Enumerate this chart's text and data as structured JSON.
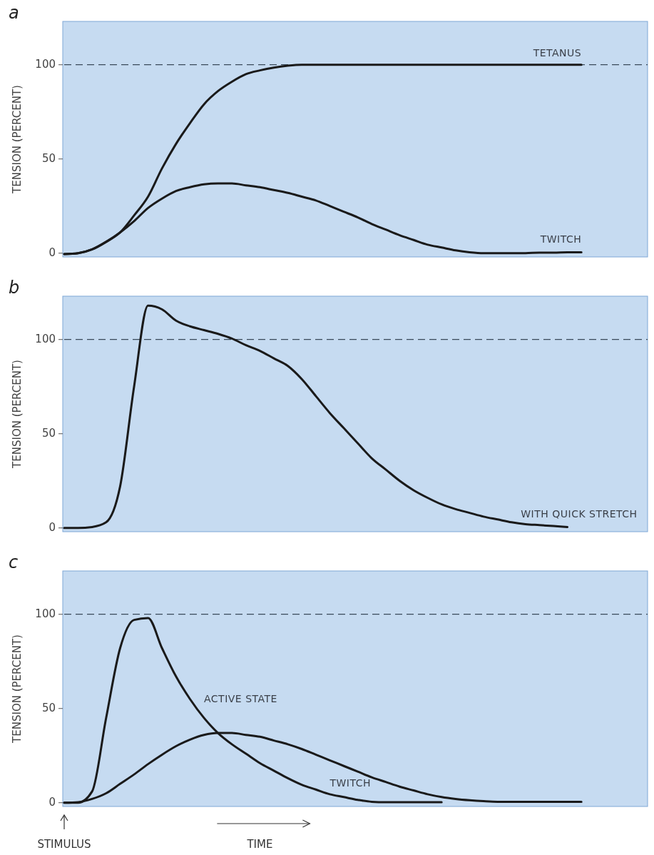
{
  "chart_data": [
    {
      "type": "line",
      "title": "a",
      "ylabel": "TENSION (PERCENT)",
      "categories": [
        null,
        null,
        null,
        null,
        null,
        null,
        null,
        null,
        null,
        null,
        null,
        null,
        null,
        null,
        null,
        null,
        null,
        null,
        null,
        null,
        null,
        null,
        null,
        null,
        null,
        null,
        null,
        null,
        null,
        null,
        null,
        null,
        null,
        null,
        null,
        null,
        null,
        null,
        null,
        null,
        null,
        null
      ],
      "ylim": [
        -2,
        123
      ],
      "yticks": [
        0,
        50,
        100
      ],
      "tick_labels": "y",
      "grid": false,
      "line_style": "solid",
      "ref_lines": [
        {
          "axis": "y",
          "value": 100,
          "line_style": "dashed",
          "color": "#3a4a5a"
        }
      ],
      "series": [
        {
          "name": "TETANUS",
          "color": "#1a1a1a",
          "values": [
            -0.5,
            0,
            2,
            6,
            11,
            20,
            30,
            45,
            58,
            69,
            79,
            86,
            91,
            95,
            97,
            98.5,
            99.5,
            100,
            100,
            100,
            100,
            100,
            100,
            100,
            100,
            100,
            100,
            100,
            100,
            100,
            100,
            100,
            100,
            100,
            100,
            100,
            100,
            100,
            null,
            null,
            null,
            null
          ]
        },
        {
          "name": "TWITCH",
          "color": "#1a1a1a",
          "values": [
            -0.5,
            0,
            2,
            6,
            11,
            17,
            24,
            29,
            33,
            35,
            36.5,
            37,
            37,
            36,
            35,
            33.5,
            32,
            30,
            28,
            25,
            22,
            19,
            15.5,
            12.5,
            9.5,
            7,
            4.5,
            3,
            1.5,
            0.5,
            0,
            0,
            0,
            0,
            0.3,
            0.3,
            0.5,
            0.5,
            null,
            null,
            null,
            null
          ]
        }
      ]
    },
    {
      "type": "line",
      "title": "b",
      "ylabel": "TENSION (PERCENT)",
      "categories": [
        null,
        null,
        null,
        null,
        null,
        null,
        null,
        null,
        null,
        null,
        null,
        null,
        null,
        null,
        null,
        null,
        null,
        null,
        null,
        null,
        null,
        null,
        null,
        null,
        null,
        null,
        null,
        null,
        null,
        null,
        null,
        null,
        null,
        null,
        null,
        null,
        null,
        null,
        null,
        null,
        null,
        null
      ],
      "ylim": [
        -2,
        123
      ],
      "yticks": [
        0,
        50,
        100
      ],
      "tick_labels": "y",
      "grid": false,
      "line_style": "solid",
      "ref_lines": [
        {
          "axis": "y",
          "value": 100,
          "line_style": "dashed",
          "color": "#3a4a5a"
        }
      ],
      "series": [
        {
          "name": "WITH QUICK STRETCH",
          "color": "#1a1a1a",
          "values": [
            0,
            0,
            0.5,
            3,
            22,
            75,
            118,
            116,
            110,
            107,
            105,
            103,
            100.5,
            97,
            94,
            90,
            86,
            79,
            70,
            61,
            53,
            45,
            37,
            31,
            25,
            20,
            16,
            12.5,
            10,
            8,
            6,
            4.5,
            3,
            2,
            1.5,
            1,
            0.5,
            null,
            null,
            null,
            null,
            null
          ]
        }
      ]
    },
    {
      "type": "line",
      "title": "c",
      "ylabel": "TENSION (PERCENT)",
      "categories": [
        null,
        null,
        null,
        null,
        null,
        null,
        null,
        null,
        null,
        null,
        null,
        null,
        null,
        null,
        null,
        null,
        null,
        null,
        null,
        null,
        null,
        null,
        null,
        null,
        null,
        null,
        null,
        null,
        null,
        null,
        null,
        null,
        null,
        null,
        null,
        null,
        null,
        null,
        null,
        null,
        null,
        null
      ],
      "ylim": [
        -2,
        123
      ],
      "yticks": [
        0,
        50,
        100
      ],
      "tick_labels": "y",
      "grid": false,
      "line_style": "solid",
      "ref_lines": [
        {
          "axis": "y",
          "value": 100,
          "line_style": "dashed",
          "color": "#3a4a5a"
        }
      ],
      "annotations": [
        "STIMULUS",
        "TIME"
      ],
      "series": [
        {
          "name": "ACTIVE STATE",
          "color": "#1a1a1a",
          "values": [
            0,
            0,
            6,
            45,
            82,
            97,
            98,
            82,
            67,
            55,
            45,
            37,
            31,
            26,
            21,
            17,
            13,
            9.5,
            7,
            4.5,
            3,
            1.5,
            0.5,
            0.3,
            0.3,
            0.3,
            0.3,
            0.3,
            null,
            null,
            null,
            null,
            null,
            null,
            null,
            null,
            null,
            null,
            null,
            null,
            null,
            null
          ]
        },
        {
          "name": "TWITCH",
          "color": "#1a1a1a",
          "values": [
            0,
            0.3,
            2,
            5,
            10,
            15,
            20.5,
            25.5,
            30,
            33.5,
            36,
            37,
            37,
            36,
            35,
            33,
            31,
            28.5,
            25.5,
            22.5,
            19.5,
            16.5,
            13.5,
            11,
            8.5,
            6.5,
            4.5,
            3,
            2,
            1.3,
            0.8,
            0.5,
            0.5,
            0.5,
            0.5,
            0.5,
            0.5,
            0.5,
            null,
            null,
            null,
            null
          ]
        }
      ]
    }
  ]
}
